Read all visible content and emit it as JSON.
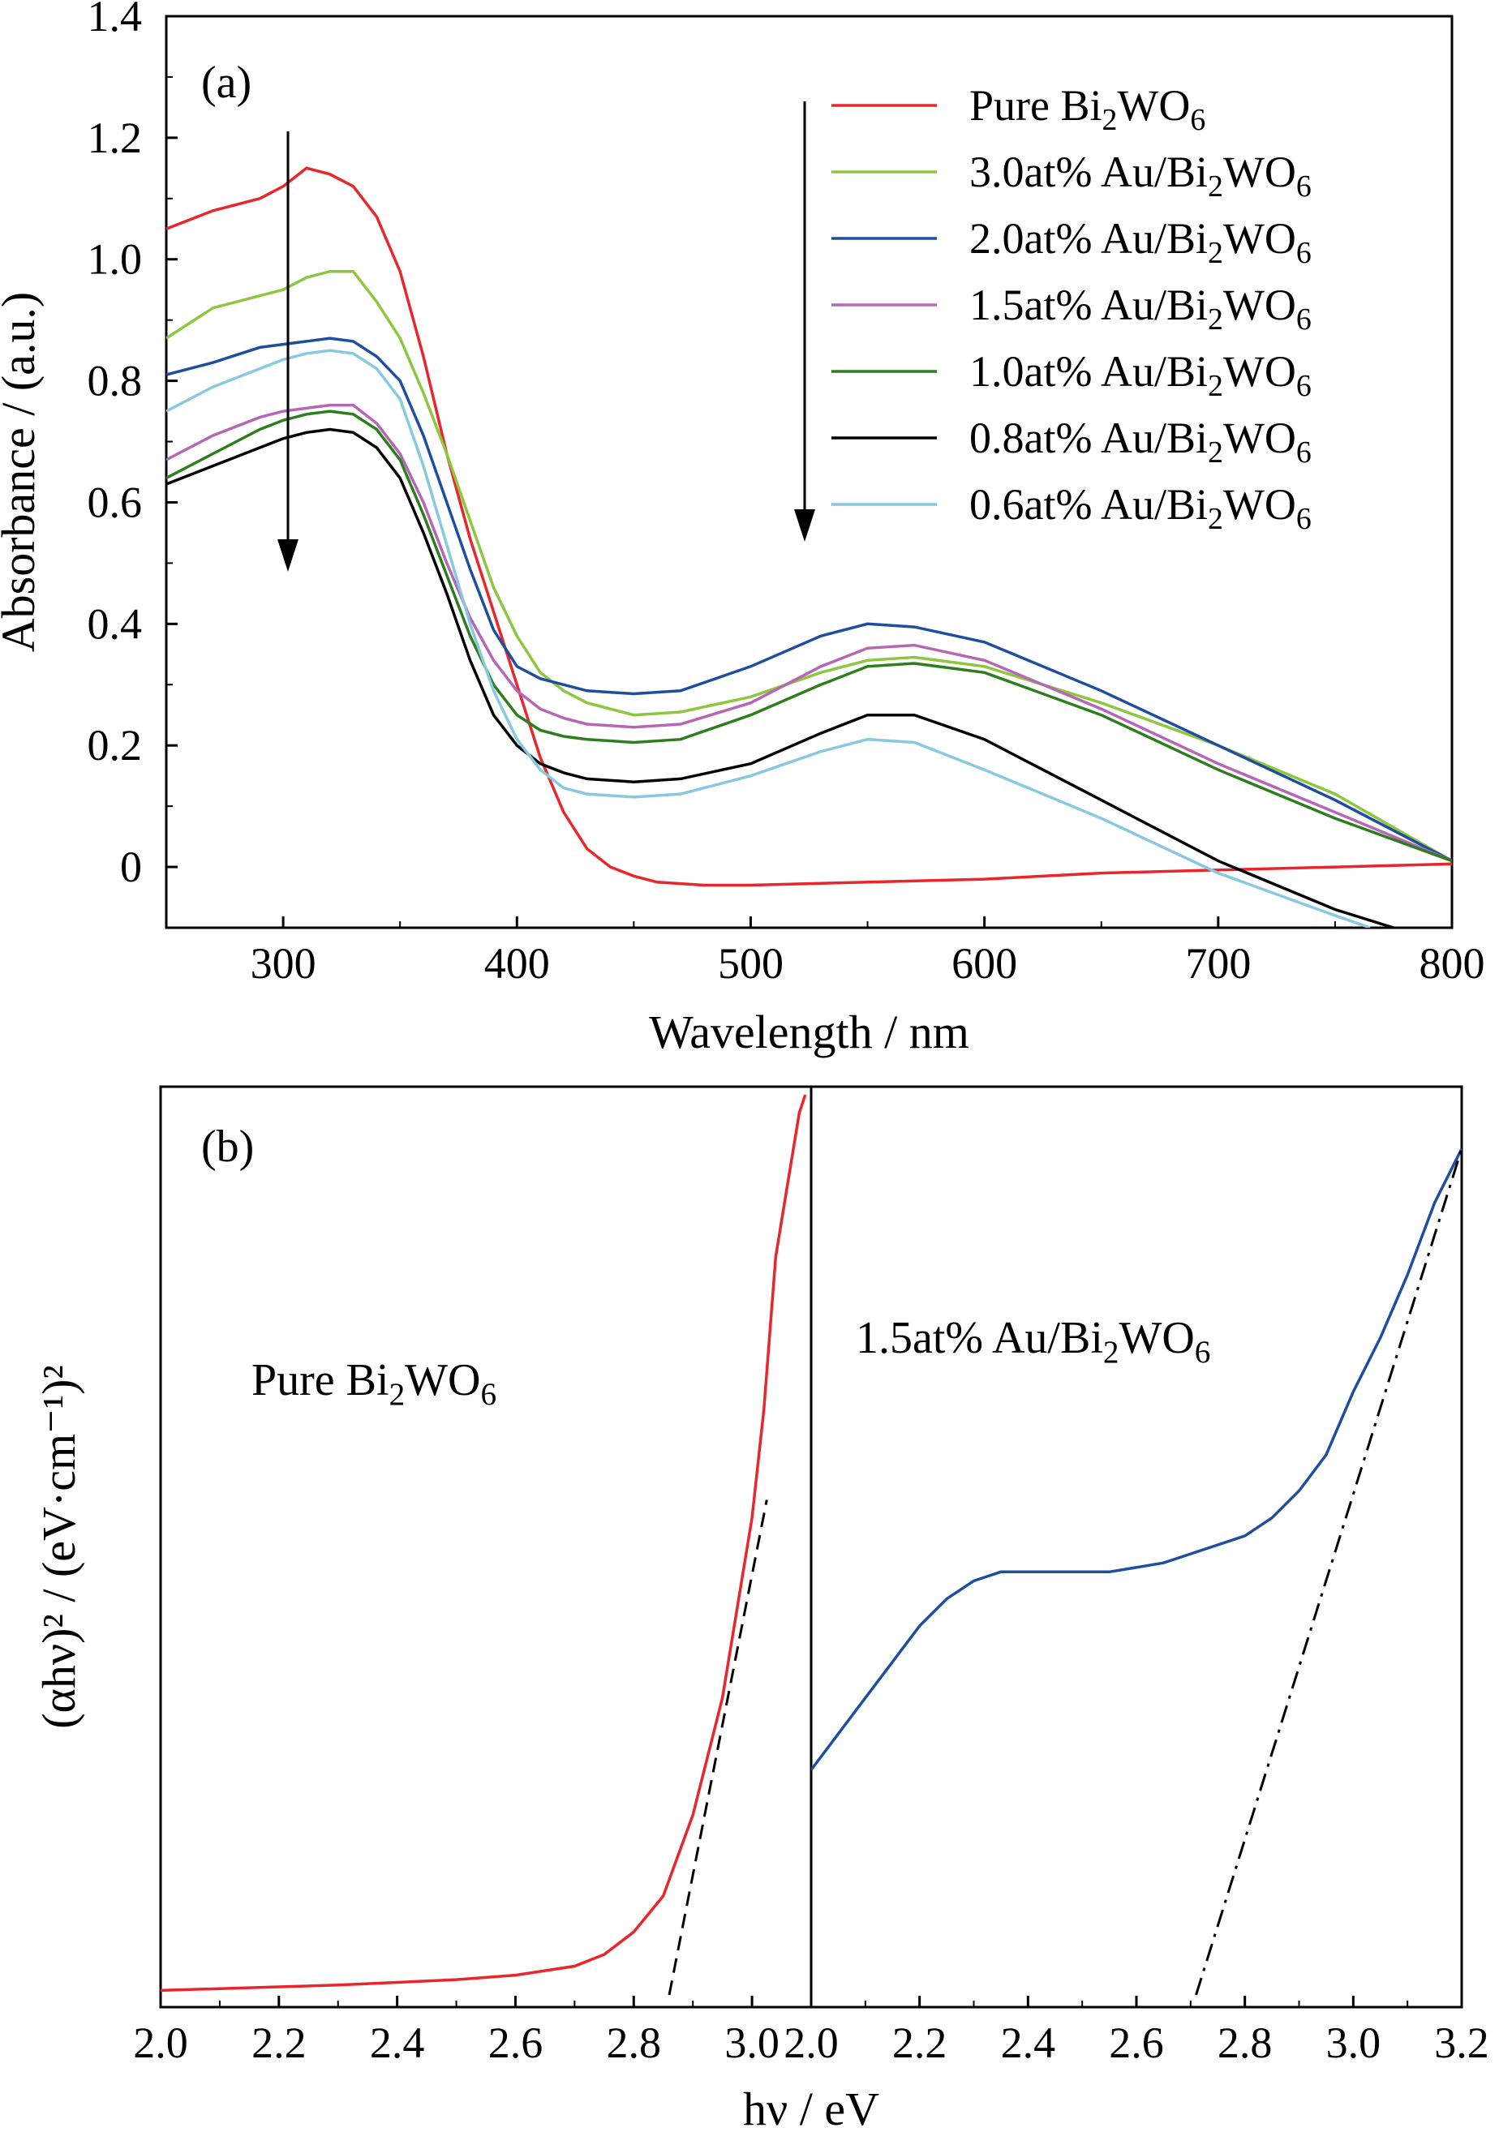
{
  "chart_data": [
    {
      "type": "line",
      "panel_label": "(a)",
      "xlabel": "Wavelength / nm",
      "ylabel": "Absorbance / (a.u.)",
      "xlim": [
        250,
        800
      ],
      "ylim": [
        -0.1,
        1.4
      ],
      "xticks": [
        300,
        400,
        500,
        600,
        700,
        800
      ],
      "xtick_labels": [
        "300",
        "400",
        "500",
        "600",
        "700",
        "800"
      ],
      "yticks": [
        0,
        0.2,
        0.4,
        0.6,
        0.8,
        1.0,
        1.2,
        1.4
      ],
      "ytick_labels": [
        "0",
        "0.2",
        "0.4",
        "0.6",
        "0.8",
        "1.0",
        "1.2",
        "1.4"
      ],
      "grid": false,
      "legend_position": "top-right",
      "annotations": [
        "downward arrow near 300 nm",
        "downward arrow near 525 nm"
      ],
      "series": [
        {
          "name": "Pure Bi2WO6",
          "name_sub": "Pure Bi|2|WO|6",
          "color": "#e8262c",
          "x": [
            250,
            270,
            290,
            300,
            310,
            320,
            330,
            340,
            350,
            360,
            370,
            380,
            390,
            400,
            410,
            420,
            430,
            440,
            450,
            460,
            480,
            500,
            550,
            600,
            650,
            700,
            750,
            800
          ],
          "y": [
            1.05,
            1.08,
            1.1,
            1.12,
            1.15,
            1.14,
            1.12,
            1.07,
            0.98,
            0.84,
            0.68,
            0.54,
            0.42,
            0.3,
            0.18,
            0.09,
            0.03,
            0.0,
            -0.015,
            -0.025,
            -0.03,
            -0.03,
            -0.025,
            -0.02,
            -0.01,
            -0.005,
            0.0,
            0.005
          ]
        },
        {
          "name": "3.0at% Au/Bi2WO6",
          "name_sub": "3.0at% Au/Bi|2|WO|6",
          "color": "#8dc63f",
          "x": [
            250,
            270,
            290,
            300,
            310,
            320,
            330,
            340,
            350,
            360,
            370,
            380,
            390,
            400,
            410,
            420,
            430,
            450,
            470,
            500,
            530,
            550,
            570,
            600,
            650,
            700,
            750,
            800
          ],
          "y": [
            0.87,
            0.92,
            0.94,
            0.95,
            0.97,
            0.98,
            0.98,
            0.93,
            0.87,
            0.78,
            0.68,
            0.57,
            0.46,
            0.38,
            0.32,
            0.29,
            0.27,
            0.25,
            0.255,
            0.28,
            0.32,
            0.34,
            0.345,
            0.33,
            0.27,
            0.2,
            0.12,
            0.01
          ]
        },
        {
          "name": "2.0at% Au/Bi2WO6",
          "name_sub": "2.0at% Au/Bi|2|WO|6",
          "color": "#1f4e9e",
          "x": [
            250,
            270,
            290,
            300,
            310,
            320,
            330,
            340,
            350,
            360,
            370,
            380,
            390,
            400,
            410,
            420,
            430,
            450,
            470,
            500,
            530,
            550,
            570,
            600,
            650,
            700,
            750,
            800
          ],
          "y": [
            0.81,
            0.83,
            0.855,
            0.86,
            0.865,
            0.87,
            0.865,
            0.84,
            0.8,
            0.71,
            0.6,
            0.49,
            0.39,
            0.33,
            0.31,
            0.3,
            0.29,
            0.285,
            0.29,
            0.33,
            0.38,
            0.4,
            0.395,
            0.37,
            0.29,
            0.2,
            0.11,
            0.01
          ]
        },
        {
          "name": "1.5at% Au/Bi2WO6",
          "name_sub": "1.5at% Au/Bi|2|WO|6",
          "color": "#b566b5",
          "x": [
            250,
            270,
            290,
            300,
            310,
            320,
            330,
            340,
            350,
            360,
            370,
            380,
            390,
            400,
            410,
            420,
            430,
            450,
            470,
            500,
            530,
            550,
            570,
            600,
            650,
            700,
            750,
            800
          ],
          "y": [
            0.67,
            0.71,
            0.74,
            0.75,
            0.755,
            0.76,
            0.76,
            0.73,
            0.68,
            0.6,
            0.5,
            0.41,
            0.34,
            0.29,
            0.26,
            0.245,
            0.235,
            0.23,
            0.235,
            0.27,
            0.33,
            0.36,
            0.365,
            0.34,
            0.26,
            0.17,
            0.09,
            0.01
          ]
        },
        {
          "name": "1.0at% Au/Bi2WO6",
          "name_sub": "1.0at% Au/Bi|2|WO|6",
          "color": "#2e7d1e",
          "x": [
            250,
            270,
            290,
            300,
            310,
            320,
            330,
            340,
            350,
            360,
            370,
            380,
            390,
            400,
            410,
            420,
            430,
            450,
            470,
            500,
            530,
            550,
            570,
            600,
            650,
            700,
            750,
            800
          ],
          "y": [
            0.64,
            0.68,
            0.72,
            0.735,
            0.745,
            0.75,
            0.745,
            0.72,
            0.67,
            0.58,
            0.48,
            0.38,
            0.3,
            0.25,
            0.225,
            0.215,
            0.21,
            0.205,
            0.21,
            0.25,
            0.3,
            0.33,
            0.335,
            0.32,
            0.25,
            0.16,
            0.08,
            0.01
          ]
        },
        {
          "name": "0.8at% Au/Bi2WO6",
          "name_sub": "0.8at% Au/Bi|2|WO|6",
          "color": "#000000",
          "x": [
            250,
            270,
            290,
            300,
            310,
            320,
            330,
            340,
            350,
            360,
            370,
            380,
            390,
            400,
            410,
            420,
            430,
            450,
            470,
            500,
            530,
            550,
            570,
            600,
            650,
            700,
            750,
            775
          ],
          "y": [
            0.63,
            0.66,
            0.69,
            0.705,
            0.715,
            0.72,
            0.715,
            0.69,
            0.64,
            0.55,
            0.45,
            0.34,
            0.25,
            0.2,
            0.17,
            0.155,
            0.145,
            0.14,
            0.145,
            0.17,
            0.22,
            0.25,
            0.25,
            0.21,
            0.11,
            0.01,
            -0.07,
            -0.1
          ]
        },
        {
          "name": "0.6at% Au/Bi2WO6",
          "name_sub": "0.6at% Au/Bi|2|WO|6",
          "color": "#88c9e0",
          "x": [
            250,
            270,
            290,
            300,
            310,
            320,
            330,
            340,
            350,
            360,
            370,
            380,
            390,
            400,
            410,
            420,
            430,
            450,
            470,
            500,
            530,
            550,
            570,
            600,
            650,
            700,
            750,
            765
          ],
          "y": [
            0.75,
            0.79,
            0.82,
            0.835,
            0.845,
            0.85,
            0.845,
            0.82,
            0.77,
            0.66,
            0.53,
            0.4,
            0.29,
            0.21,
            0.16,
            0.13,
            0.12,
            0.115,
            0.12,
            0.15,
            0.19,
            0.21,
            0.205,
            0.16,
            0.08,
            -0.01,
            -0.08,
            -0.1
          ]
        }
      ]
    },
    {
      "type": "line",
      "panel_label": "(b)",
      "xlabel": "hν / eV",
      "ylabel": "(αhν)² / (eV·cm⁻¹)²",
      "ylim": [
        0,
        1
      ],
      "yticks": [],
      "subpanels": [
        {
          "label": "Pure Bi2WO6",
          "label_sub": "Pure Bi|2|WO|6",
          "xlim": [
            2.0,
            3.1
          ],
          "xticks": [
            2.0,
            2.2,
            2.4,
            2.6,
            2.8,
            3.0
          ],
          "xtick_labels": [
            "2.0",
            "2.2",
            "2.4",
            "2.6",
            "2.8",
            "3.0"
          ],
          "series": {
            "color": "#e8262c",
            "x": [
              2.0,
              2.1,
              2.2,
              2.3,
              2.4,
              2.5,
              2.6,
              2.7,
              2.75,
              2.8,
              2.85,
              2.9,
              2.95,
              2.98,
              3.0,
              3.02,
              3.04,
              3.06,
              3.08,
              3.09
            ],
            "y": [
              0.005,
              0.007,
              0.009,
              0.011,
              0.014,
              0.017,
              0.022,
              0.032,
              0.045,
              0.07,
              0.11,
              0.2,
              0.33,
              0.45,
              0.53,
              0.65,
              0.82,
              0.9,
              0.98,
              1.0
            ]
          },
          "tangent": {
            "style": "dashed",
            "x": [
              2.86,
              3.025
            ],
            "y": [
              0.0,
              0.55
            ]
          }
        },
        {
          "label": "1.5at% Au/Bi2WO6",
          "label_sub": "1.5at% Au/Bi|2|WO|6",
          "xlim": [
            2.0,
            3.2
          ],
          "xticks": [
            2.0,
            2.2,
            2.4,
            2.6,
            2.8,
            3.0,
            3.2
          ],
          "xtick_labels": [
            "2.0",
            "2.2",
            "2.4",
            "2.6",
            "2.8",
            "3.0",
            "3.2"
          ],
          "series": {
            "color": "#1f4e9e",
            "x": [
              2.0,
              2.05,
              2.1,
              2.15,
              2.2,
              2.25,
              2.3,
              2.35,
              2.4,
              2.45,
              2.5,
              2.55,
              2.6,
              2.65,
              2.7,
              2.75,
              2.8,
              2.85,
              2.9,
              2.95,
              3.0,
              3.05,
              3.1,
              3.15,
              3.2
            ],
            "y": [
              0.25,
              0.29,
              0.33,
              0.37,
              0.41,
              0.44,
              0.46,
              0.47,
              0.47,
              0.47,
              0.47,
              0.47,
              0.475,
              0.48,
              0.49,
              0.5,
              0.51,
              0.53,
              0.56,
              0.6,
              0.67,
              0.73,
              0.8,
              0.88,
              0.94
            ]
          },
          "tangent": {
            "style": "dashdot",
            "x": [
              2.71,
              3.2
            ],
            "y": [
              0.0,
              0.94
            ]
          }
        }
      ]
    }
  ]
}
